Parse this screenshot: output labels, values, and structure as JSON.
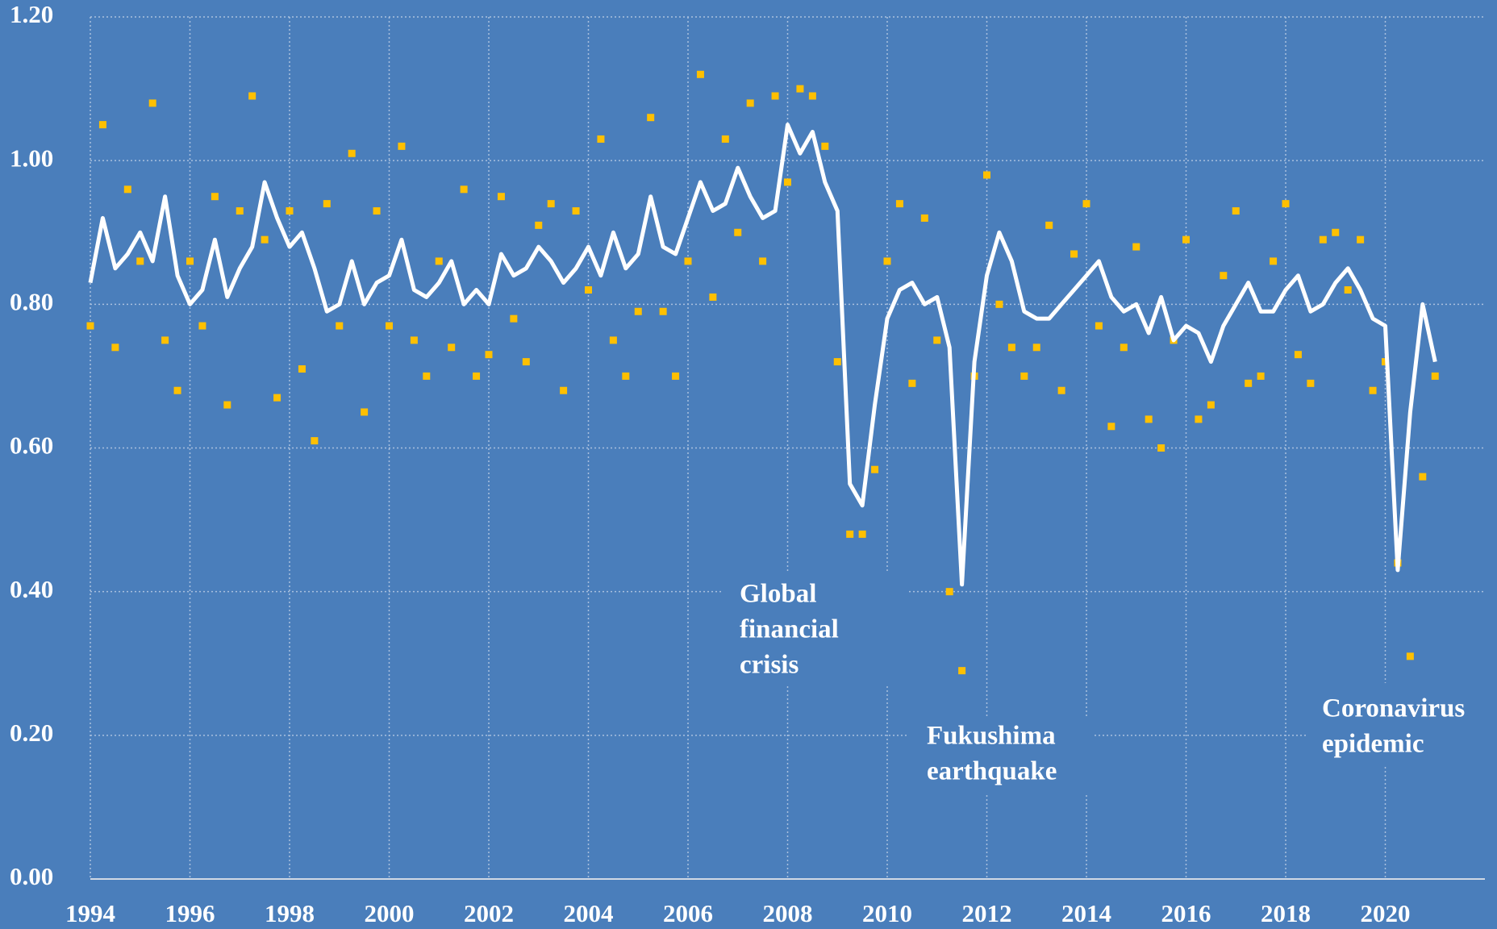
{
  "chart_data": {
    "type": "line-scatter",
    "x": [
      1994,
      1994.25,
      1994.5,
      1994.75,
      1995,
      1995.25,
      1995.5,
      1995.75,
      1996,
      1996.25,
      1996.5,
      1996.75,
      1997,
      1997.25,
      1997.5,
      1997.75,
      1998,
      1998.25,
      1998.5,
      1998.75,
      1999,
      1999.25,
      1999.5,
      1999.75,
      2000,
      2000.25,
      2000.5,
      2000.75,
      2001,
      2001.25,
      2001.5,
      2001.75,
      2002,
      2002.25,
      2002.5,
      2002.75,
      2003,
      2003.25,
      2003.5,
      2003.75,
      2004,
      2004.25,
      2004.5,
      2004.75,
      2005,
      2005.25,
      2005.5,
      2005.75,
      2006,
      2006.25,
      2006.5,
      2006.75,
      2007,
      2007.25,
      2007.5,
      2007.75,
      2008,
      2008.25,
      2008.5,
      2008.75,
      2009,
      2009.25,
      2009.5,
      2009.75,
      2010,
      2010.25,
      2010.5,
      2010.75,
      2011,
      2011.25,
      2011.5,
      2011.75,
      2012,
      2012.25,
      2012.5,
      2012.75,
      2013,
      2013.25,
      2013.5,
      2013.75,
      2014,
      2014.25,
      2014.5,
      2014.75,
      2015,
      2015.25,
      2015.5,
      2015.75,
      2016,
      2016.25,
      2016.5,
      2016.75,
      2017,
      2017.25,
      2017.5,
      2017.75,
      2018,
      2018.25,
      2018.5,
      2018.75,
      2019,
      2019.25,
      2019.5,
      2019.75,
      2020,
      2020.25,
      2020.5,
      2020.75,
      2021
    ],
    "series": [
      {
        "mode": "markers",
        "color": "#ffc000",
        "values": [
          0.77,
          1.05,
          0.74,
          0.96,
          0.86,
          1.08,
          0.75,
          0.68,
          0.86,
          0.77,
          0.95,
          0.66,
          0.93,
          1.09,
          0.89,
          0.67,
          0.93,
          0.71,
          0.61,
          0.94,
          0.77,
          1.01,
          0.65,
          0.93,
          0.77,
          1.02,
          0.75,
          0.7,
          0.86,
          0.74,
          0.96,
          0.7,
          0.73,
          0.95,
          0.78,
          0.72,
          0.91,
          0.94,
          0.68,
          0.93,
          0.82,
          1.03,
          0.75,
          0.7,
          0.79,
          1.06,
          0.79,
          0.7,
          0.86,
          1.12,
          0.81,
          1.03,
          0.9,
          1.08,
          0.86,
          1.09,
          0.97,
          1.1,
          1.09,
          1.02,
          0.72,
          0.48,
          0.48,
          0.57,
          0.86,
          0.94,
          0.69,
          0.92,
          0.75,
          0.4,
          0.29,
          0.7,
          0.98,
          0.8,
          0.74,
          0.7,
          0.74,
          0.91,
          0.68,
          0.87,
          0.94,
          0.77,
          0.63,
          0.74,
          0.88,
          0.64,
          0.6,
          0.75,
          0.89,
          0.64,
          0.66,
          0.84,
          0.93,
          0.69,
          0.7,
          0.86,
          0.94,
          0.73,
          0.69,
          0.89,
          0.9,
          0.82,
          0.89,
          0.68,
          0.72,
          0.44,
          0.31,
          0.56,
          0.7
        ]
      },
      {
        "mode": "line",
        "color": "#ffffff",
        "values": [
          0.83,
          0.92,
          0.85,
          0.87,
          0.9,
          0.86,
          0.95,
          0.84,
          0.8,
          0.82,
          0.89,
          0.81,
          0.85,
          0.88,
          0.97,
          0.92,
          0.88,
          0.9,
          0.85,
          0.79,
          0.8,
          0.86,
          0.8,
          0.83,
          0.84,
          0.89,
          0.82,
          0.81,
          0.83,
          0.86,
          0.8,
          0.82,
          0.8,
          0.87,
          0.84,
          0.85,
          0.88,
          0.86,
          0.83,
          0.85,
          0.88,
          0.84,
          0.9,
          0.85,
          0.87,
          0.95,
          0.88,
          0.87,
          0.92,
          0.97,
          0.93,
          0.94,
          0.99,
          0.95,
          0.92,
          0.93,
          1.05,
          1.01,
          1.04,
          0.97,
          0.93,
          0.55,
          0.52,
          0.66,
          0.78,
          0.82,
          0.83,
          0.8,
          0.81,
          0.74,
          0.41,
          0.72,
          0.84,
          0.9,
          0.86,
          0.79,
          0.78,
          0.78,
          0.8,
          0.82,
          0.84,
          0.86,
          0.81,
          0.79,
          0.8,
          0.76,
          0.81,
          0.75,
          0.77,
          0.76,
          0.72,
          0.77,
          0.8,
          0.83,
          0.79,
          0.79,
          0.82,
          0.84,
          0.79,
          0.8,
          0.83,
          0.85,
          0.82,
          0.78,
          0.77,
          0.43,
          0.65,
          0.8,
          0.72
        ]
      }
    ],
    "xlim": [
      1994,
      2022
    ],
    "xticks": [
      1994,
      1996,
      1998,
      2000,
      2002,
      2004,
      2006,
      2008,
      2010,
      2012,
      2014,
      2016,
      2018,
      2020
    ],
    "ylim": [
      0,
      1.2
    ],
    "yticks": [
      {
        "value": 0,
        "label": "0.00"
      },
      {
        "value": 0.2,
        "label": "0.20"
      },
      {
        "value": 0.4,
        "label": "0.40"
      },
      {
        "value": 0.6,
        "label": "0.60"
      },
      {
        "value": 0.8,
        "label": "0.80"
      },
      {
        "value": 1.0,
        "label": "1.00"
      },
      {
        "value": 1.2,
        "label": "1.20"
      }
    ],
    "grid": true,
    "annotations": [
      [
        "Global",
        "financial",
        "crisis"
      ],
      [
        "Fukushima",
        "earthquake"
      ],
      [
        "Coronavirus",
        "epidemic"
      ]
    ]
  }
}
